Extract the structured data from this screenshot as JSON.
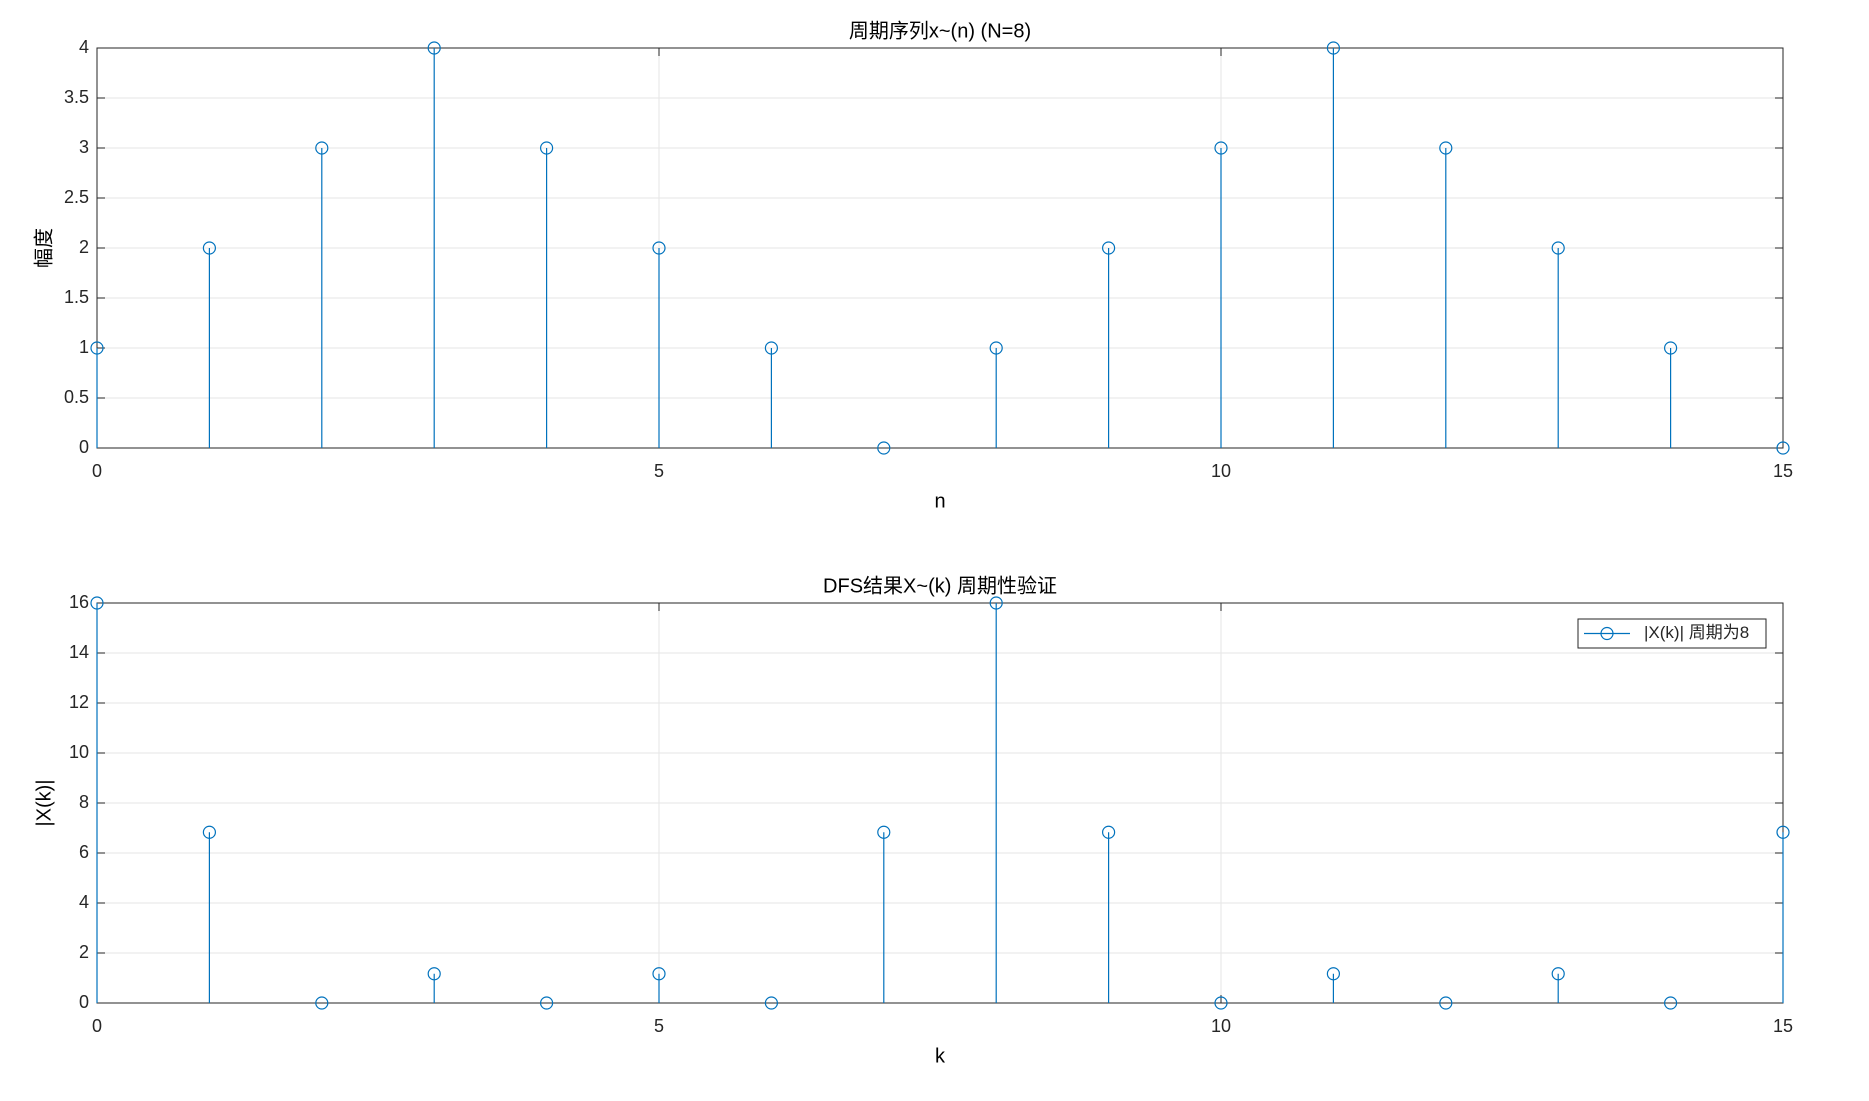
{
  "chart_data": [
    {
      "type": "stem",
      "title": "周期序列x~(n) (N=8)",
      "xlabel": "n",
      "ylabel": "幅度",
      "x": [
        0,
        1,
        2,
        3,
        4,
        5,
        6,
        7,
        8,
        9,
        10,
        11,
        12,
        13,
        14,
        15
      ],
      "values": [
        1,
        2,
        3,
        4,
        3,
        2,
        1,
        0,
        1,
        2,
        3,
        4,
        3,
        2,
        1,
        0
      ],
      "color": "#0072bd",
      "xlim": [
        0,
        15
      ],
      "xticks": [
        0,
        5,
        10,
        15
      ],
      "ylim": [
        0,
        4
      ],
      "yticks": [
        0,
        0.5,
        1,
        1.5,
        2,
        2.5,
        3,
        3.5,
        4
      ],
      "grid": true
    },
    {
      "type": "stem",
      "title": "DFS结果X~(k) 周期性验证",
      "xlabel": "k",
      "ylabel": "|X(k)|",
      "x": [
        0,
        1,
        2,
        3,
        4,
        5,
        6,
        7,
        8,
        9,
        10,
        11,
        12,
        13,
        14,
        15
      ],
      "series": [
        {
          "name": "|X(k)| 周期为8",
          "color": "#0072bd",
          "values": [
            16,
            6.83,
            0,
            1.17,
            0,
            1.17,
            0,
            6.83,
            16,
            6.83,
            0,
            1.17,
            0,
            1.17,
            0,
            6.83
          ]
        }
      ],
      "xlim": [
        0,
        15
      ],
      "xticks": [
        0,
        5,
        10,
        15
      ],
      "ylim": [
        0,
        16
      ],
      "yticks": [
        0,
        2,
        4,
        6,
        8,
        10,
        12,
        14,
        16
      ],
      "grid": true,
      "legend": "upper right"
    }
  ]
}
